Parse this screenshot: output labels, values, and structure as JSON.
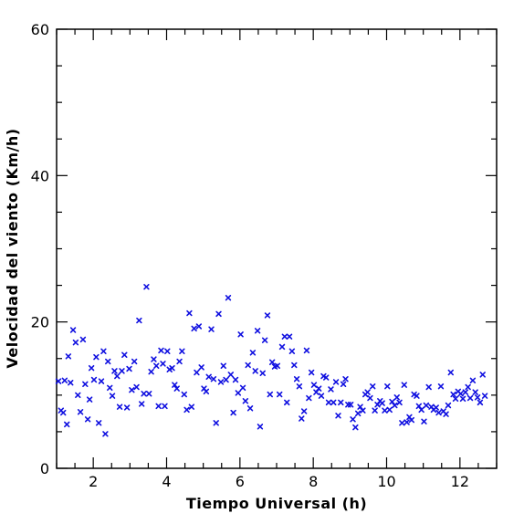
{
  "chart_data": {
    "type": "scatter",
    "title": "",
    "xlabel": "Tiempo Universal (h)",
    "ylabel": "Velocidad del viento (Km/h)",
    "xlim": [
      1,
      13
    ],
    "ylim": [
      0,
      60
    ],
    "x_ticks": [
      2,
      4,
      6,
      8,
      10,
      12
    ],
    "y_ticks": [
      0,
      20,
      40,
      60
    ],
    "x_tick_labels": [
      "2",
      "4",
      "6",
      "8",
      "10",
      "12"
    ],
    "y_tick_labels": [
      "0",
      "20",
      "40",
      "60"
    ],
    "marker": "x",
    "grid": false,
    "legend": false,
    "color": "#1010e0",
    "series": [
      {
        "points": [
          [
            1.05,
            11.9
          ],
          [
            1.12,
            7.9
          ],
          [
            1.18,
            7.6
          ],
          [
            1.22,
            12.0
          ],
          [
            1.28,
            6.0
          ],
          [
            1.32,
            15.3
          ],
          [
            1.38,
            11.7
          ],
          [
            1.45,
            18.9
          ],
          [
            1.52,
            17.2
          ],
          [
            1.58,
            10.0
          ],
          [
            1.65,
            7.7
          ],
          [
            1.72,
            17.6
          ],
          [
            1.78,
            11.5
          ],
          [
            1.85,
            6.7
          ],
          [
            1.9,
            9.4
          ],
          [
            1.95,
            13.7
          ],
          [
            2.02,
            12.1
          ],
          [
            2.08,
            15.2
          ],
          [
            2.15,
            6.2
          ],
          [
            2.22,
            11.9
          ],
          [
            2.28,
            16.0
          ],
          [
            2.33,
            4.7
          ],
          [
            2.4,
            14.6
          ],
          [
            2.45,
            11.0
          ],
          [
            2.52,
            9.9
          ],
          [
            2.58,
            13.3
          ],
          [
            2.65,
            12.6
          ],
          [
            2.72,
            8.4
          ],
          [
            2.78,
            13.3
          ],
          [
            2.85,
            15.5
          ],
          [
            2.92,
            8.3
          ],
          [
            2.98,
            13.6
          ],
          [
            3.05,
            10.7
          ],
          [
            3.12,
            14.6
          ],
          [
            3.18,
            11.1
          ],
          [
            3.25,
            20.2
          ],
          [
            3.32,
            8.8
          ],
          [
            3.38,
            10.2
          ],
          [
            3.45,
            24.8
          ],
          [
            3.52,
            10.2
          ],
          [
            3.58,
            13.2
          ],
          [
            3.65,
            14.9
          ],
          [
            3.72,
            14.0
          ],
          [
            3.78,
            8.5
          ],
          [
            3.85,
            16.1
          ],
          [
            3.9,
            14.3
          ],
          [
            3.95,
            8.5
          ],
          [
            4.02,
            16.0
          ],
          [
            4.08,
            13.5
          ],
          [
            4.15,
            13.7
          ],
          [
            4.22,
            11.4
          ],
          [
            4.28,
            10.9
          ],
          [
            4.35,
            14.6
          ],
          [
            4.42,
            16.0
          ],
          [
            4.48,
            10.1
          ],
          [
            4.55,
            8.0
          ],
          [
            4.62,
            21.2
          ],
          [
            4.68,
            8.4
          ],
          [
            4.75,
            19.1
          ],
          [
            4.82,
            13.1
          ],
          [
            4.88,
            19.4
          ],
          [
            4.95,
            13.8
          ],
          [
            5.02,
            10.9
          ],
          [
            5.08,
            10.5
          ],
          [
            5.15,
            12.5
          ],
          [
            5.22,
            19.0
          ],
          [
            5.28,
            12.2
          ],
          [
            5.35,
            6.2
          ],
          [
            5.42,
            21.1
          ],
          [
            5.48,
            11.8
          ],
          [
            5.55,
            14.0
          ],
          [
            5.62,
            12.1
          ],
          [
            5.68,
            23.3
          ],
          [
            5.75,
            12.8
          ],
          [
            5.82,
            7.6
          ],
          [
            5.88,
            12.1
          ],
          [
            5.95,
            10.3
          ],
          [
            6.02,
            18.3
          ],
          [
            6.08,
            11.0
          ],
          [
            6.15,
            9.2
          ],
          [
            6.22,
            14.1
          ],
          [
            6.28,
            8.2
          ],
          [
            6.35,
            15.8
          ],
          [
            6.42,
            13.3
          ],
          [
            6.48,
            18.8
          ],
          [
            6.55,
            5.7
          ],
          [
            6.62,
            13.0
          ],
          [
            6.68,
            17.5
          ],
          [
            6.75,
            20.9
          ],
          [
            6.82,
            10.1
          ],
          [
            6.88,
            14.5
          ],
          [
            6.95,
            13.9
          ],
          [
            7.02,
            14.0
          ],
          [
            7.08,
            10.1
          ],
          [
            7.15,
            16.6
          ],
          [
            7.22,
            18.0
          ],
          [
            7.28,
            9.0
          ],
          [
            7.35,
            18.0
          ],
          [
            7.42,
            16.0
          ],
          [
            7.48,
            14.1
          ],
          [
            7.55,
            12.2
          ],
          [
            7.62,
            11.2
          ],
          [
            7.68,
            6.8
          ],
          [
            7.75,
            7.8
          ],
          [
            7.82,
            16.1
          ],
          [
            7.88,
            9.6
          ],
          [
            7.95,
            13.1
          ],
          [
            8.02,
            11.4
          ],
          [
            8.08,
            10.4
          ],
          [
            8.15,
            10.9
          ],
          [
            8.22,
            9.9
          ],
          [
            8.28,
            12.6
          ],
          [
            8.35,
            12.4
          ],
          [
            8.42,
            9.0
          ],
          [
            8.48,
            10.8
          ],
          [
            8.55,
            9.0
          ],
          [
            8.62,
            11.8
          ],
          [
            8.68,
            7.2
          ],
          [
            8.75,
            9.0
          ],
          [
            8.82,
            11.5
          ],
          [
            8.88,
            12.2
          ],
          [
            8.95,
            8.7
          ],
          [
            9.02,
            8.7
          ],
          [
            9.08,
            6.7
          ],
          [
            9.15,
            5.6
          ],
          [
            9.22,
            7.5
          ],
          [
            9.28,
            8.4
          ],
          [
            9.35,
            7.9
          ],
          [
            9.42,
            10.1
          ],
          [
            9.48,
            10.4
          ],
          [
            9.55,
            9.6
          ],
          [
            9.62,
            11.2
          ],
          [
            9.68,
            7.9
          ],
          [
            9.75,
            8.7
          ],
          [
            9.82,
            9.2
          ],
          [
            9.88,
            8.9
          ],
          [
            9.95,
            7.9
          ],
          [
            10.02,
            11.2
          ],
          [
            10.08,
            8.0
          ],
          [
            10.15,
            9.1
          ],
          [
            10.22,
            8.6
          ],
          [
            10.28,
            9.7
          ],
          [
            10.35,
            9.0
          ],
          [
            10.42,
            6.2
          ],
          [
            10.48,
            11.4
          ],
          [
            10.55,
            6.3
          ],
          [
            10.62,
            7.0
          ],
          [
            10.68,
            6.6
          ],
          [
            10.75,
            10.1
          ],
          [
            10.82,
            9.9
          ],
          [
            10.88,
            8.5
          ],
          [
            10.95,
            8.0
          ],
          [
            11.02,
            6.4
          ],
          [
            11.08,
            8.6
          ],
          [
            11.15,
            11.1
          ],
          [
            11.22,
            8.4
          ],
          [
            11.28,
            8.0
          ],
          [
            11.35,
            8.3
          ],
          [
            11.42,
            7.6
          ],
          [
            11.48,
            11.2
          ],
          [
            11.55,
            7.8
          ],
          [
            11.62,
            7.4
          ],
          [
            11.68,
            8.6
          ],
          [
            11.75,
            13.1
          ],
          [
            11.82,
            10.1
          ],
          [
            11.88,
            9.5
          ],
          [
            11.95,
            10.5
          ],
          [
            12.02,
            10.2
          ],
          [
            12.08,
            9.5
          ],
          [
            12.15,
            10.4
          ],
          [
            12.22,
            11.1
          ],
          [
            12.28,
            9.6
          ],
          [
            12.35,
            12.0
          ],
          [
            12.42,
            10.4
          ],
          [
            12.48,
            9.7
          ],
          [
            12.55,
            9.0
          ],
          [
            12.62,
            12.8
          ],
          [
            12.68,
            9.9
          ]
        ]
      }
    ]
  }
}
